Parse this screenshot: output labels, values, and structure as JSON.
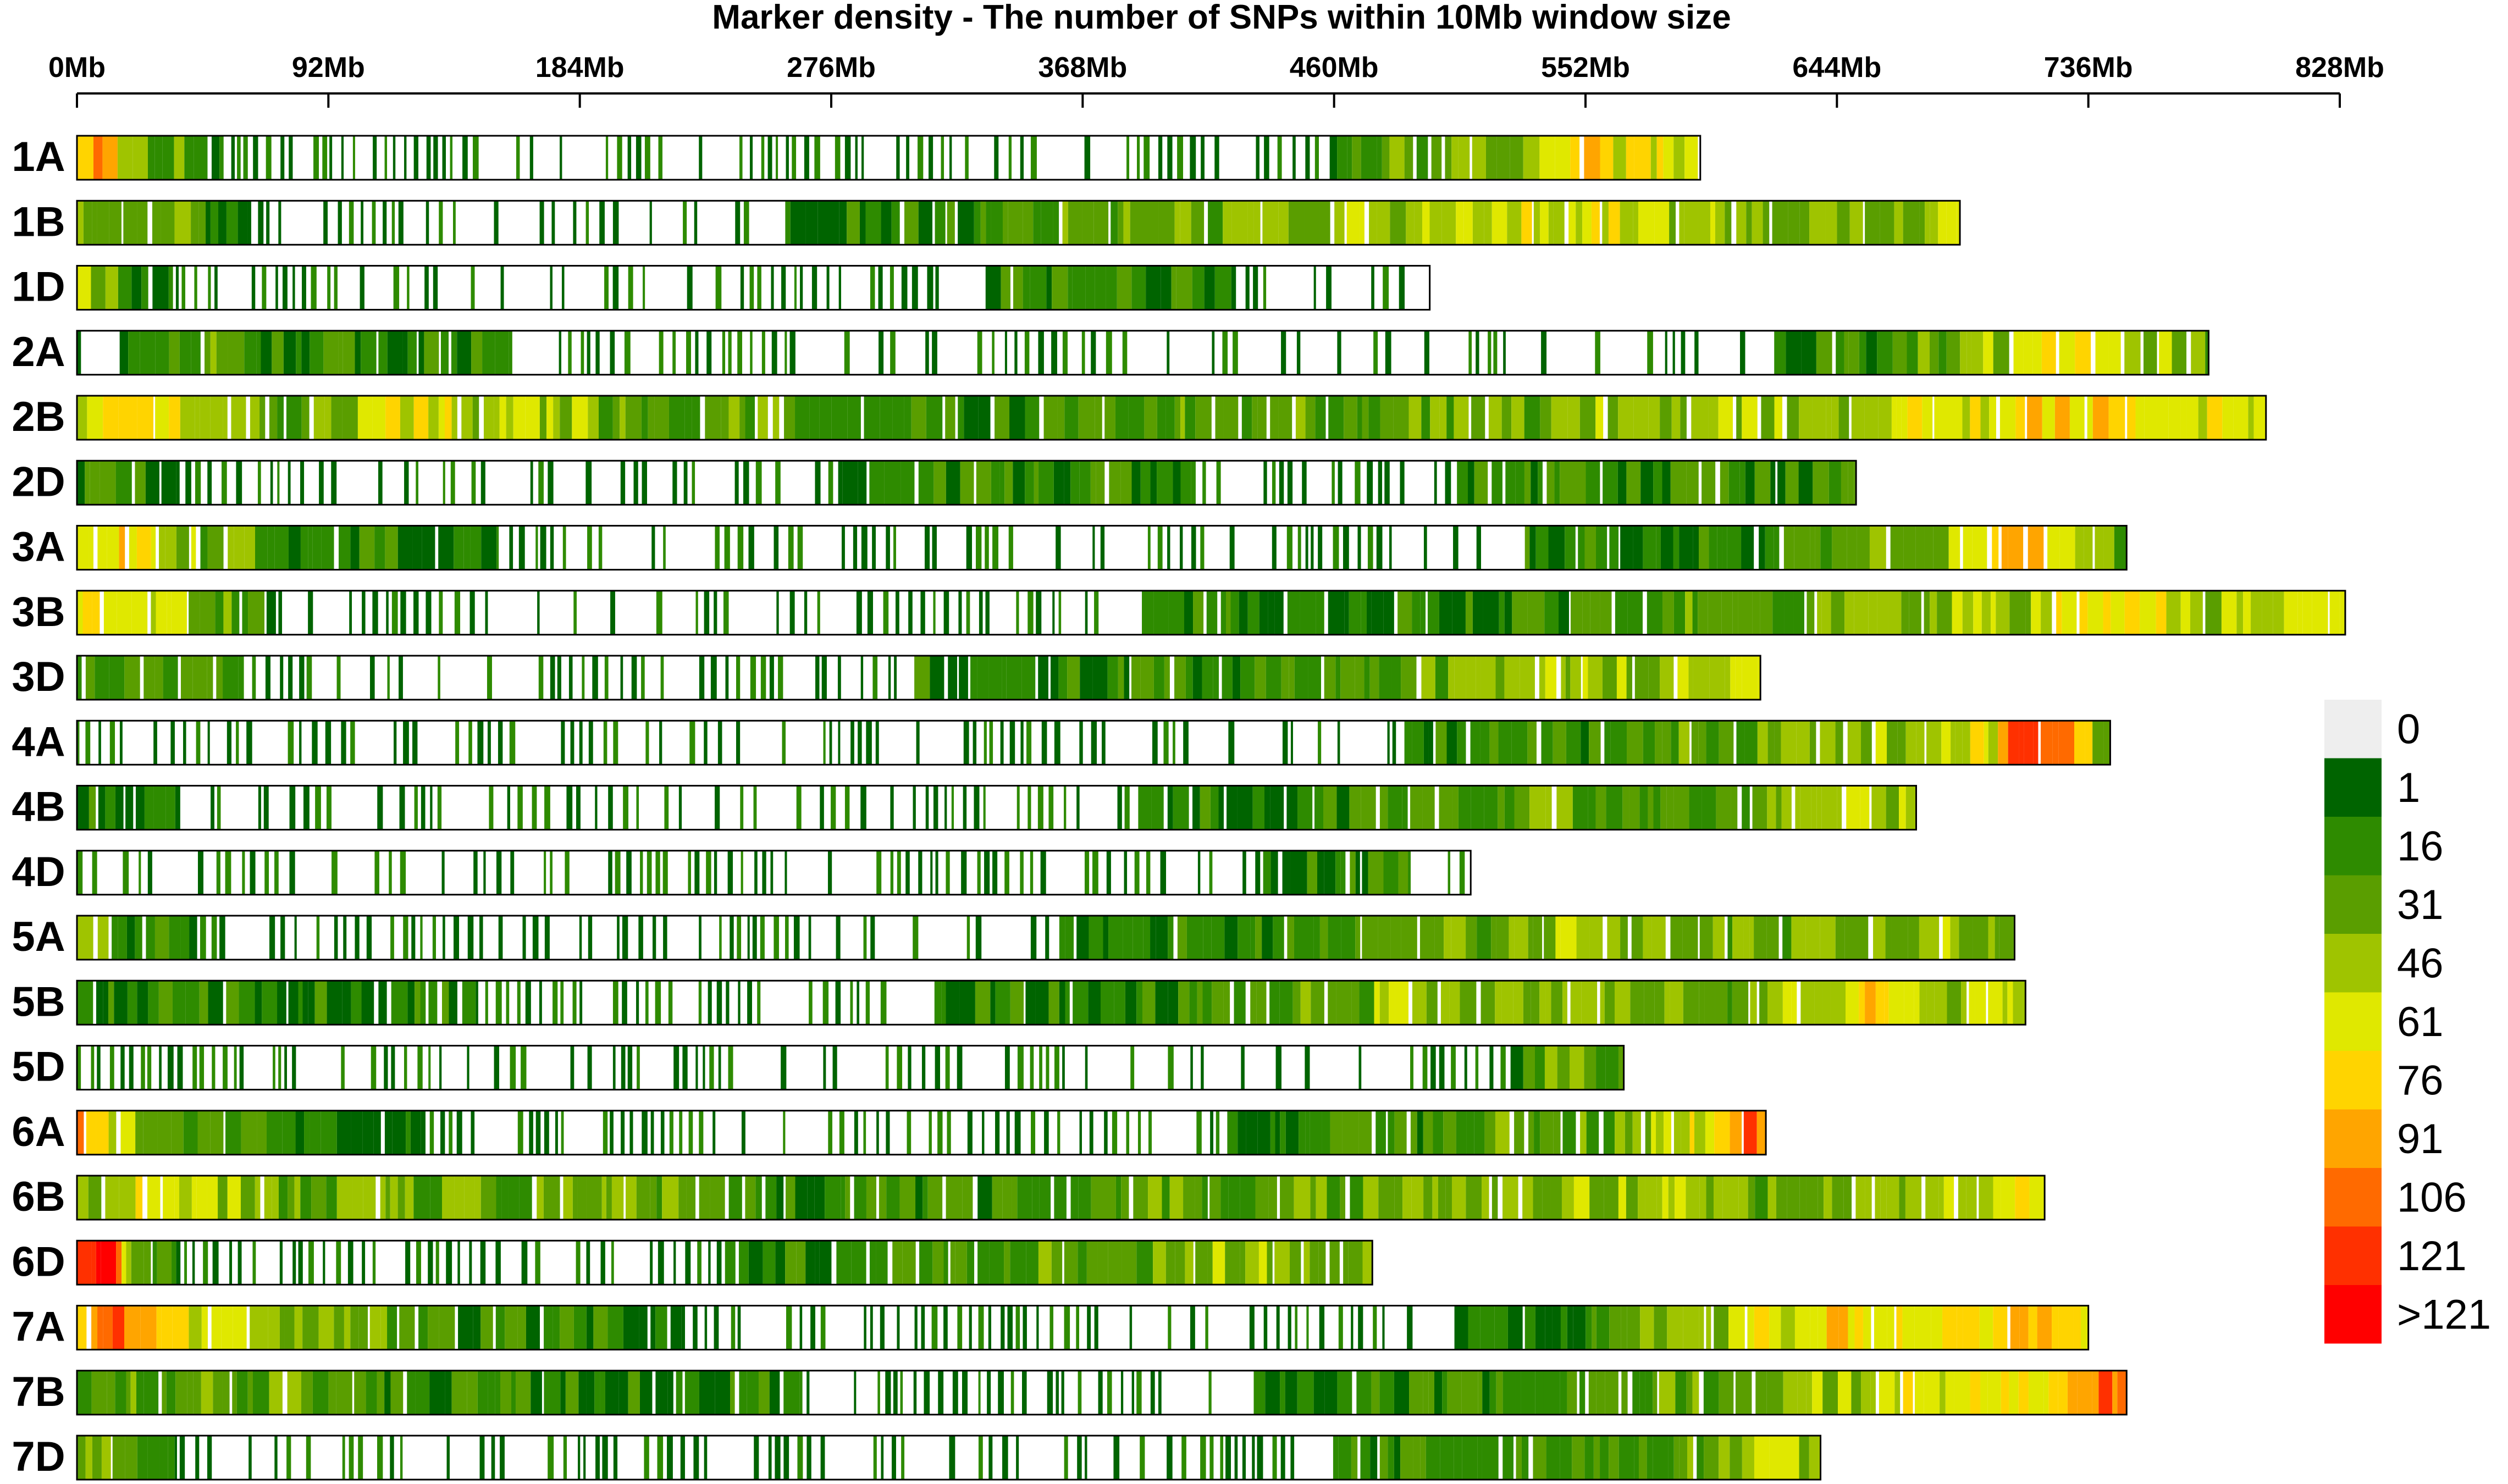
{
  "chart_data": {
    "type": "heatmap",
    "title": "Marker density - The number of SNPs within 10Mb window size",
    "x_axis": {
      "unit": "Mb",
      "range": [
        0,
        828
      ],
      "ticks": [
        0,
        92,
        184,
        276,
        368,
        460,
        552,
        644,
        736,
        828
      ],
      "tick_labels": [
        "0Mb",
        "92Mb",
        "184Mb",
        "276Mb",
        "368Mb",
        "460Mb",
        "552Mb",
        "644Mb",
        "736Mb",
        "828Mb"
      ]
    },
    "window_size_mb": 10,
    "legend": {
      "labels": [
        "0",
        "1",
        "16",
        "31",
        "46",
        "61",
        "76",
        "91",
        "106",
        "121",
        ">121"
      ],
      "colors": [
        "#eeeeee",
        "#006400",
        "#2e8b00",
        "#5a9e00",
        "#9fc400",
        "#e0e800",
        "#ffd400",
        "#ffa500",
        "#ff6a00",
        "#ff3000",
        "#ff0000"
      ]
    },
    "chromosomes": [
      {
        "name": "1A",
        "length": 594,
        "profile": [
          [
            0,
            5
          ],
          [
            0.01,
            7
          ],
          [
            0.02,
            5
          ],
          [
            0.05,
            3
          ],
          [
            0.1,
            1
          ],
          [
            0.2,
            0
          ],
          [
            0.45,
            0
          ],
          [
            0.55,
            1
          ],
          [
            0.6,
            0
          ],
          [
            0.75,
            1
          ],
          [
            0.82,
            3
          ],
          [
            0.88,
            4
          ],
          [
            0.93,
            6
          ],
          [
            0.96,
            5
          ],
          [
            1,
            5
          ]
        ]
      },
      {
        "name": "1B",
        "length": 689,
        "profile": [
          [
            0,
            4
          ],
          [
            0.05,
            3
          ],
          [
            0.1,
            1
          ],
          [
            0.3,
            1
          ],
          [
            0.45,
            2
          ],
          [
            0.55,
            3
          ],
          [
            0.7,
            4
          ],
          [
            0.8,
            5
          ],
          [
            0.9,
            3
          ],
          [
            1,
            4
          ]
        ]
      },
      {
        "name": "1D",
        "length": 495,
        "profile": [
          [
            0,
            5
          ],
          [
            0.03,
            2
          ],
          [
            0.1,
            1
          ],
          [
            0.2,
            0
          ],
          [
            0.5,
            1
          ],
          [
            0.82,
            2
          ],
          [
            0.88,
            1
          ],
          [
            1,
            1
          ]
        ]
      },
      {
        "name": "2A",
        "length": 780,
        "profile": [
          [
            0,
            1
          ],
          [
            0.05,
            3
          ],
          [
            0.1,
            2
          ],
          [
            0.3,
            1
          ],
          [
            0.5,
            1
          ],
          [
            0.62,
            1
          ],
          [
            0.75,
            1
          ],
          [
            0.88,
            3
          ],
          [
            0.93,
            6
          ],
          [
            0.96,
            4
          ],
          [
            1,
            3
          ]
        ]
      },
      {
        "name": "2B",
        "length": 801,
        "profile": [
          [
            0,
            5
          ],
          [
            0.02,
            6
          ],
          [
            0.03,
            7
          ],
          [
            0.05,
            4
          ],
          [
            0.1,
            3
          ],
          [
            0.15,
            5
          ],
          [
            0.25,
            3
          ],
          [
            0.4,
            2
          ],
          [
            0.6,
            3
          ],
          [
            0.8,
            4
          ],
          [
            0.92,
            6
          ],
          [
            0.96,
            5
          ],
          [
            1,
            5
          ]
        ]
      },
      {
        "name": "2D",
        "length": 651,
        "profile": [
          [
            0,
            2
          ],
          [
            0.1,
            1
          ],
          [
            0.3,
            1
          ],
          [
            0.55,
            2
          ],
          [
            0.7,
            1
          ],
          [
            0.85,
            2
          ],
          [
            1,
            2
          ]
        ]
      },
      {
        "name": "3A",
        "length": 750,
        "profile": [
          [
            0,
            5
          ],
          [
            0.02,
            6
          ],
          [
            0.05,
            4
          ],
          [
            0.1,
            2
          ],
          [
            0.3,
            1
          ],
          [
            0.6,
            1
          ],
          [
            0.8,
            2
          ],
          [
            0.9,
            3
          ],
          [
            0.95,
            7
          ],
          [
            0.98,
            4
          ],
          [
            1,
            3
          ]
        ]
      },
      {
        "name": "3B",
        "length": 830,
        "profile": [
          [
            0,
            5
          ],
          [
            0.02,
            6
          ],
          [
            0.05,
            3
          ],
          [
            0.1,
            1
          ],
          [
            0.3,
            1
          ],
          [
            0.6,
            2
          ],
          [
            0.75,
            3
          ],
          [
            0.85,
            4
          ],
          [
            0.9,
            6
          ],
          [
            0.95,
            4
          ],
          [
            1,
            6
          ]
        ]
      },
      {
        "name": "3D",
        "length": 616,
        "profile": [
          [
            0,
            2
          ],
          [
            0.05,
            3
          ],
          [
            0.1,
            1
          ],
          [
            0.4,
            1
          ],
          [
            0.95,
            4
          ],
          [
            1,
            5
          ]
        ]
      },
      {
        "name": "4A",
        "length": 744,
        "profile": [
          [
            0,
            1
          ],
          [
            0.3,
            1
          ],
          [
            0.6,
            1
          ],
          [
            0.8,
            3
          ],
          [
            0.9,
            4
          ],
          [
            0.94,
            5
          ],
          [
            0.95,
            10
          ],
          [
            0.97,
            8
          ],
          [
            1,
            3
          ]
        ]
      },
      {
        "name": "4B",
        "length": 673,
        "profile": [
          [
            0,
            2
          ],
          [
            0.1,
            1
          ],
          [
            0.5,
            1
          ],
          [
            0.8,
            3
          ],
          [
            0.9,
            3
          ],
          [
            0.96,
            4
          ],
          [
            1,
            4
          ]
        ]
      },
      {
        "name": "4D",
        "length": 510,
        "profile": [
          [
            0,
            1
          ],
          [
            0.5,
            1
          ],
          [
            0.8,
            1
          ],
          [
            0.9,
            2
          ],
          [
            1,
            1
          ]
        ]
      },
      {
        "name": "5A",
        "length": 709,
        "profile": [
          [
            0,
            5
          ],
          [
            0.02,
            2
          ],
          [
            0.1,
            1
          ],
          [
            0.4,
            1
          ],
          [
            0.6,
            2
          ],
          [
            0.78,
            4
          ],
          [
            0.88,
            3
          ],
          [
            0.95,
            4
          ],
          [
            1,
            4
          ]
        ]
      },
      {
        "name": "5B",
        "length": 713,
        "profile": [
          [
            0,
            2
          ],
          [
            0.1,
            2
          ],
          [
            0.3,
            1
          ],
          [
            0.55,
            2
          ],
          [
            0.7,
            4
          ],
          [
            0.85,
            3
          ],
          [
            0.92,
            6
          ],
          [
            0.95,
            4
          ],
          [
            1,
            4
          ]
        ]
      },
      {
        "name": "5D",
        "length": 566,
        "profile": [
          [
            0,
            1
          ],
          [
            0.5,
            1
          ],
          [
            0.92,
            1
          ],
          [
            0.96,
            4
          ],
          [
            1,
            2
          ]
        ]
      },
      {
        "name": "6A",
        "length": 618,
        "profile": [
          [
            0,
            7
          ],
          [
            0.02,
            5
          ],
          [
            0.05,
            3
          ],
          [
            0.1,
            2
          ],
          [
            0.3,
            1
          ],
          [
            0.6,
            1
          ],
          [
            0.9,
            3
          ],
          [
            0.96,
            5
          ],
          [
            0.98,
            8
          ],
          [
            1,
            8
          ]
        ]
      },
      {
        "name": "6B",
        "length": 720,
        "profile": [
          [
            0,
            4
          ],
          [
            0.05,
            5
          ],
          [
            0.1,
            3
          ],
          [
            0.25,
            3
          ],
          [
            0.4,
            2
          ],
          [
            0.6,
            3
          ],
          [
            0.8,
            4
          ],
          [
            0.9,
            3
          ],
          [
            0.96,
            5
          ],
          [
            1,
            5
          ]
        ]
      },
      {
        "name": "6D",
        "length": 474,
        "profile": [
          [
            0,
            10
          ],
          [
            0.02,
            10
          ],
          [
            0.04,
            4
          ],
          [
            0.08,
            1
          ],
          [
            0.4,
            1
          ],
          [
            0.93,
            4
          ],
          [
            1,
            3
          ]
        ]
      },
      {
        "name": "7A",
        "length": 736,
        "profile": [
          [
            0,
            6
          ],
          [
            0.01,
            8
          ],
          [
            0.03,
            7
          ],
          [
            0.05,
            5
          ],
          [
            0.1,
            4
          ],
          [
            0.2,
            2
          ],
          [
            0.4,
            1
          ],
          [
            0.6,
            1
          ],
          [
            0.75,
            2
          ],
          [
            0.87,
            6
          ],
          [
            0.92,
            5
          ],
          [
            0.96,
            7
          ],
          [
            1,
            5
          ]
        ]
      },
      {
        "name": "7B",
        "length": 750,
        "profile": [
          [
            0,
            3
          ],
          [
            0.1,
            3
          ],
          [
            0.2,
            2
          ],
          [
            0.5,
            1
          ],
          [
            0.78,
            3
          ],
          [
            0.85,
            4
          ],
          [
            0.92,
            5
          ],
          [
            0.96,
            6
          ],
          [
            0.99,
            8
          ],
          [
            1,
            8
          ]
        ]
      },
      {
        "name": "7D",
        "length": 638,
        "profile": [
          [
            0,
            4
          ],
          [
            0.03,
            3
          ],
          [
            0.06,
            1
          ],
          [
            0.6,
            1
          ],
          [
            0.8,
            2
          ],
          [
            0.92,
            3
          ],
          [
            0.98,
            4
          ],
          [
            1,
            5
          ]
        ]
      }
    ]
  }
}
